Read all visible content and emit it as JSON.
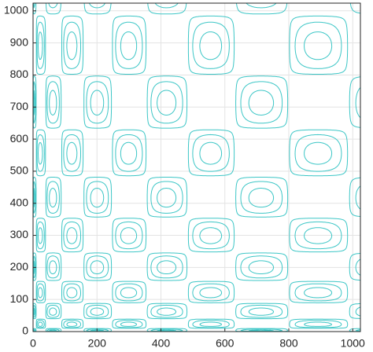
{
  "chart_data": {
    "type": "contour",
    "z": "sin(sqrt(x)) * sin(sqrt(y))",
    "levels": [
      0.05,
      0.35,
      0.75
    ],
    "color": "#3cc6c6",
    "xlim": [
      0,
      1024
    ],
    "ylim": [
      0,
      1024
    ],
    "xticks": [
      0,
      200,
      400,
      600,
      800,
      1000
    ],
    "yticks": [
      0,
      100,
      200,
      300,
      400,
      500,
      600,
      700,
      800,
      900,
      1000
    ],
    "grid": true
  }
}
